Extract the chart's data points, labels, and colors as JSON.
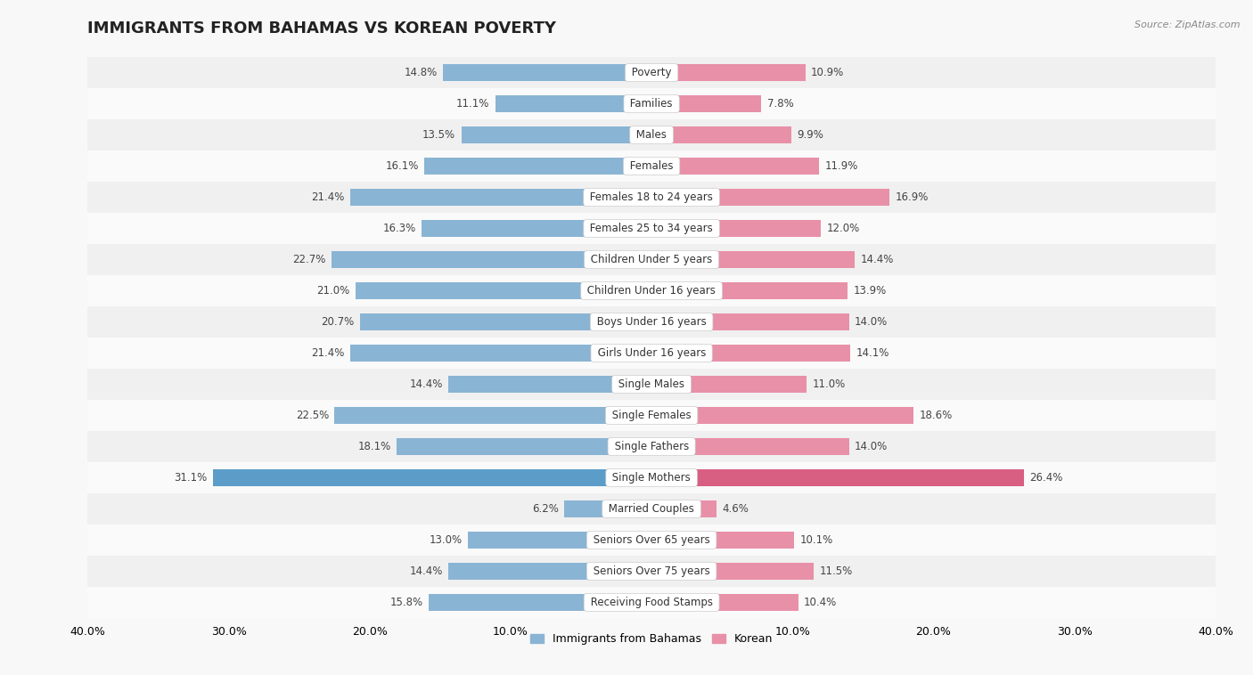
{
  "title": "IMMIGRANTS FROM BAHAMAS VS KOREAN POVERTY",
  "source": "Source: ZipAtlas.com",
  "categories": [
    "Poverty",
    "Families",
    "Males",
    "Females",
    "Females 18 to 24 years",
    "Females 25 to 34 years",
    "Children Under 5 years",
    "Children Under 16 years",
    "Boys Under 16 years",
    "Girls Under 16 years",
    "Single Males",
    "Single Females",
    "Single Fathers",
    "Single Mothers",
    "Married Couples",
    "Seniors Over 65 years",
    "Seniors Over 75 years",
    "Receiving Food Stamps"
  ],
  "bahamas_values": [
    14.8,
    11.1,
    13.5,
    16.1,
    21.4,
    16.3,
    22.7,
    21.0,
    20.7,
    21.4,
    14.4,
    22.5,
    18.1,
    31.1,
    6.2,
    13.0,
    14.4,
    15.8
  ],
  "korean_values": [
    10.9,
    7.8,
    9.9,
    11.9,
    16.9,
    12.0,
    14.4,
    13.9,
    14.0,
    14.1,
    11.0,
    18.6,
    14.0,
    26.4,
    4.6,
    10.1,
    11.5,
    10.4
  ],
  "bahamas_color": "#8ab4d4",
  "korean_color": "#e890a8",
  "bahamas_highlight_color": "#5b9dc8",
  "korean_highlight_color": "#d95f82",
  "highlight_row": 13,
  "row_color_even": "#f0f0f0",
  "row_color_odd": "#fafafa",
  "xlim": 40.0,
  "bar_height": 0.55,
  "legend_labels": [
    "Immigrants from Bahamas",
    "Korean"
  ],
  "title_fontsize": 13,
  "label_fontsize": 8.5,
  "value_fontsize": 8.5,
  "axis_label_fontsize": 9
}
